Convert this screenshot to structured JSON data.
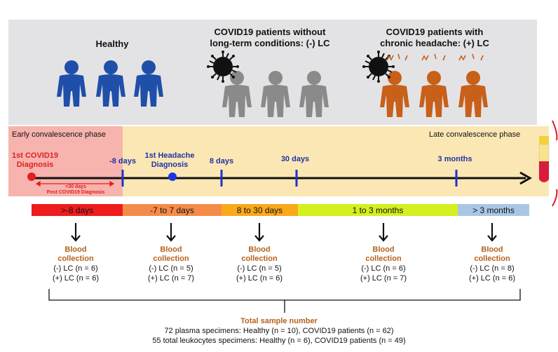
{
  "groups": {
    "healthy": "Healthy",
    "no_lc": [
      "COVID19 patients without",
      "long-term conditions: (-) LC"
    ],
    "with_lc": [
      "COVID19 patients with",
      "chronic headache: (+) LC"
    ]
  },
  "phases": {
    "early": "Early convalescence phase",
    "late": "Late convalescence phase"
  },
  "timeline": {
    "diagnosis": [
      "1st COVID19",
      "Diagnosis"
    ],
    "headache": [
      "1st Headache",
      "Diagnosis"
    ],
    "post_window": [
      "<30 days",
      "Post COVID19 Diagnosis"
    ],
    "ticks": [
      "-8 days",
      "8 days",
      "30 days",
      "3 months"
    ]
  },
  "periods": [
    {
      "label": ">-8 days",
      "color": "#ee1c1c"
    },
    {
      "label": "-7 to 7 days",
      "color": "#f58b4a"
    },
    {
      "label": "8 to 30 days",
      "color": "#f9a91c"
    },
    {
      "label": "1 to 3 months",
      "color": "#d4f01e"
    },
    {
      "label": "> 3 months",
      "color": "#a9c7e4"
    }
  ],
  "collections": [
    {
      "title": [
        "Blood",
        "collection"
      ],
      "neg": "(-) LC (n = 6)",
      "pos": "(+) LC (n = 6)"
    },
    {
      "title": [
        "Blood",
        "collection"
      ],
      "neg": "(-) LC (n = 5)",
      "pos": "(+) LC (n = 7)"
    },
    {
      "title": [
        "Blood",
        "collection"
      ],
      "neg": "(-) LC (n = 5)",
      "pos": "(+) LC (n = 6)"
    },
    {
      "title": [
        "Blood",
        "collection"
      ],
      "neg": "(-) LC (n = 6)",
      "pos": "(+) LC (n = 7)"
    },
    {
      "title": [
        "Blood",
        "collection"
      ],
      "neg": "(-) LC (n = 8)",
      "pos": "(+) LC (n = 6)"
    }
  ],
  "total": {
    "title": "Total sample number",
    "line1": "72 plasma specimens: Healthy (n = 10), COVID19 patients (n = 62)",
    "line2": "55 total leukocytes specimens: Healthy (n = 6), COVID19 patients (n = 49)"
  },
  "colors": {
    "healthy": "#1f4fa8",
    "no_lc": "#8a8a8a",
    "with_lc": "#c8601a",
    "timeline_tick": "#1f33c8",
    "diagnosis_dot": "#e02020",
    "headache_dot": "#1f33e0"
  }
}
